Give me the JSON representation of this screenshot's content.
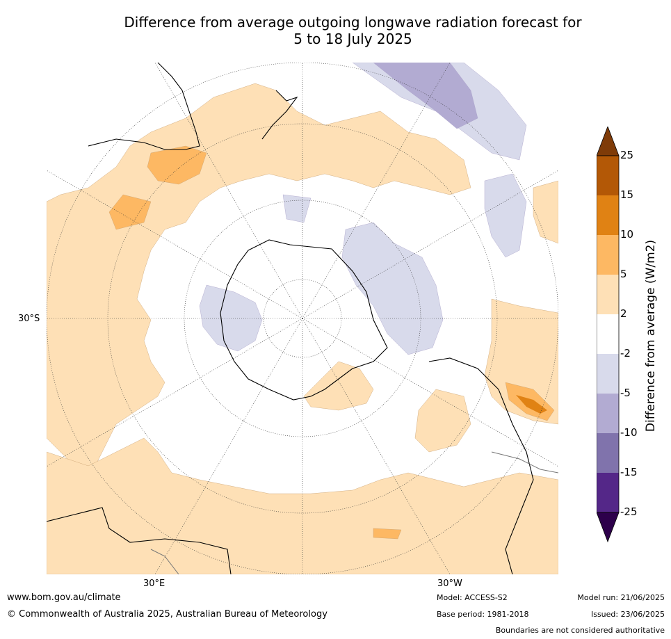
{
  "title_line1": "Difference from average outgoing longwave radiation forecast for",
  "title_line2": "5 to 18 July 2025",
  "map": {
    "projection": "south-polar stereographic",
    "lat_label": "30°S",
    "lon_label_east": "30°E",
    "lon_label_west": "30°W"
  },
  "colorbar": {
    "label": "Difference from average (W/m2)",
    "ticks": [
      "25",
      "15",
      "10",
      "5",
      "2",
      "-2",
      "-5",
      "-10",
      "-15",
      "-25"
    ],
    "colors": {
      "over": "#7f3b08",
      "bin_15_25": "#b35806",
      "bin_10_15": "#e08214",
      "bin_5_10": "#fdb863",
      "bin_2_5": "#fee0b6",
      "bin_m2_2": "#ffffff",
      "bin_m5_m2": "#d8daeb",
      "bin_m10_m5": "#b2abd2",
      "bin_m15_m10": "#8073ac",
      "bin_m25_m15": "#542788",
      "under": "#2d004b"
    }
  },
  "footer": {
    "url": "www.bom.gov.au/climate",
    "copyright": "© Commonwealth of Australia 2025, Australian Bureau of Meteorology",
    "model": "Model: ACCESS-S2",
    "base_period": "Base period: 1981-2018",
    "model_run": "Model run: 21/06/2025",
    "issued": "Issued: 23/06/2025",
    "boundaries": "Boundaries are not considered authoritative"
  }
}
